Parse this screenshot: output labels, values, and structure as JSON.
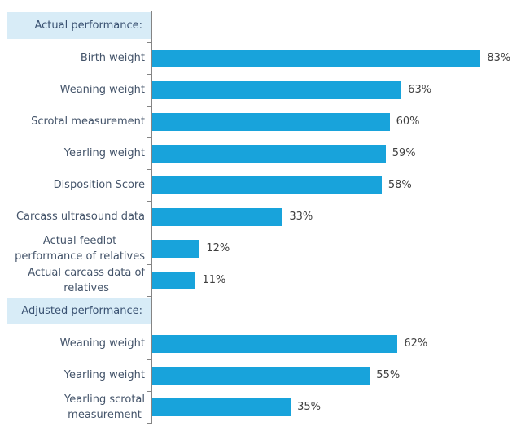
{
  "chart_data": {
    "type": "bar",
    "orientation": "horizontal",
    "title": "",
    "xlabel": "",
    "ylabel": "",
    "xlim": [
      0,
      93
    ],
    "grid": false,
    "legend": false,
    "value_suffix": "%",
    "groups": [
      {
        "header": "Actual performance:",
        "categories": [
          "Birth weight",
          "Weaning weight",
          "Scrotal measurement",
          "Yearling weight",
          "Disposition Score",
          "Carcass ultrasound data",
          "Actual feedlot\nperformance of relatives",
          "Actual carcass data of\nrelatives"
        ],
        "values": [
          83,
          63,
          60,
          59,
          58,
          33,
          12,
          11
        ],
        "data_labels": [
          "83%",
          "63%",
          "60%",
          "59%",
          "58%",
          "33%",
          "12%",
          "11%"
        ]
      },
      {
        "header": "Adjusted performance:",
        "categories": [
          "Weaning weight",
          "Yearling weight",
          "Yearling scrotal\nmeasurement"
        ],
        "values": [
          62,
          55,
          35
        ],
        "data_labels": [
          "62%",
          "55%",
          "35%"
        ]
      }
    ]
  },
  "colors": {
    "bar": "#18a3db",
    "section_header_background": "#d8ecf7",
    "section_header_text": "#3a5272",
    "category_label_text": "#44546a",
    "value_label_text": "#404040",
    "axis": "#848484",
    "background": "#ffffff"
  }
}
